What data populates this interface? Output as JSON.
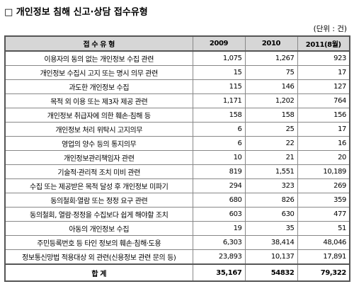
{
  "title": "□ 개인정보 침해 신고·상담 접수유형",
  "unit": "(단위 : 건)",
  "table": {
    "header": [
      "접 수 유 형",
      "2009",
      "2010",
      "2011(8월)"
    ],
    "rows": [
      [
        "이용자의 동의 없는 개인정보 수집 관련",
        "1,075",
        "1,267",
        "923"
      ],
      [
        "개인정보 수집시 고지 또는 명시 의무 관련",
        "15",
        "75",
        "17"
      ],
      [
        "과도한 개인정보 수집",
        "115",
        "146",
        "127"
      ],
      [
        "목적 외 이용 또는 제3자 제공 관련",
        "1,171",
        "1,202",
        "764"
      ],
      [
        "개인정보 취급자에 의한 훼손·침해 등",
        "158",
        "158",
        "156"
      ],
      [
        "개인정보 처리 위탁시 고지의무",
        "6",
        "25",
        "17"
      ],
      [
        "영업의 양수 등의 통지의무",
        "6",
        "22",
        "16"
      ],
      [
        "개인정보관리책임자 관련",
        "10",
        "21",
        "20"
      ],
      [
        "기술적·관리적 조치 미비 관련",
        "819",
        "1,551",
        "10,189"
      ],
      [
        "수집 또는 제공받은 목적 달성 후 개인정보 미파기",
        "294",
        "323",
        "269"
      ],
      [
        "동의철회·열람 또는 정정 요구 관련",
        "680",
        "826",
        "359"
      ],
      [
        "동의철회, 열람·정정을 수집보다 쉽게 해야할 조치",
        "603",
        "630",
        "477"
      ],
      [
        "아동의 개인정보 수집",
        "19",
        "35",
        "51"
      ],
      [
        "주민등록번호 등 타인 정보의 훼손·침해·도용",
        "6,303",
        "38,414",
        "48,046"
      ],
      [
        "정보통신망법 적용대상 외 관련(신용정보 관련 문의 등)",
        "23,893",
        "10,137",
        "17,891"
      ]
    ],
    "total": [
      "합 계",
      "35,167",
      "54832",
      "79,322"
    ]
  }
}
